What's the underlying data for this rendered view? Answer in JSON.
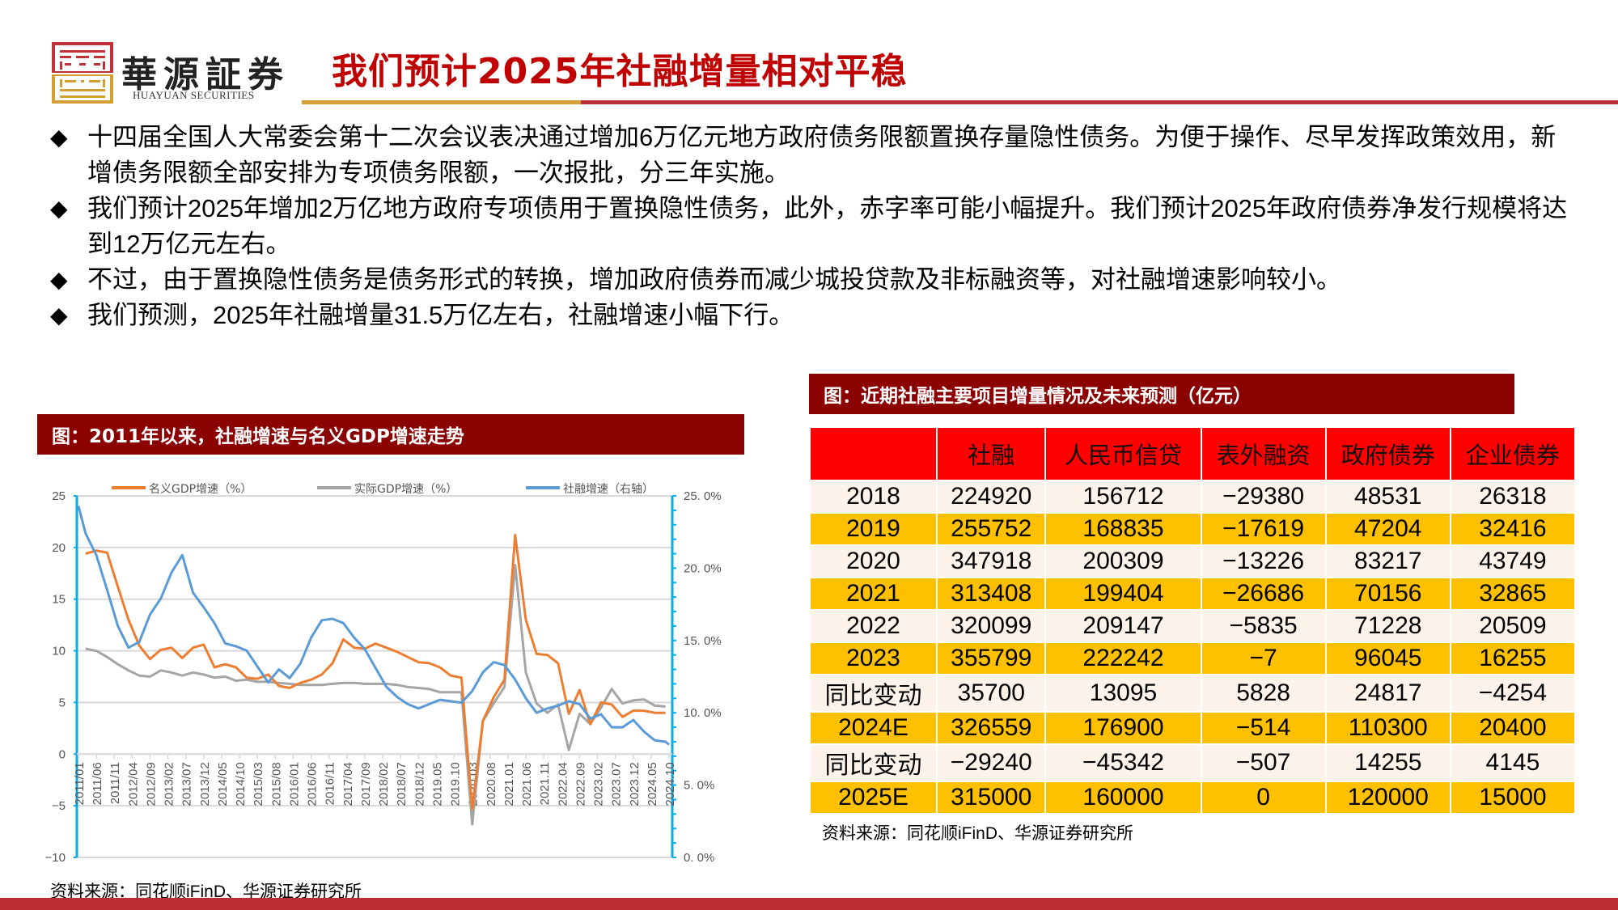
{
  "header": {
    "brand_cn": "華源証券",
    "brand_en": "HUAYUAN SECURITIES",
    "title": "我们预计2025年社融增量相对平稳",
    "colors": {
      "title": "#c00000",
      "rule_gold": "#d39e33",
      "rule_red": "#bb2d35",
      "logo_red": "#c0323a",
      "logo_gold": "#d39e33"
    }
  },
  "bullets": [
    "十四届全国人大常委会第十二次会议表决通过增加6万亿元地方政府债务限额置换存量隐性债务。为便于操作、尽早发挥政策效用，新增债务限额全部安排为专项债务限额，一次报批，分三年实施。",
    "我们预计2025年增加2万亿地方政府专项债用于置换隐性债务，此外，赤字率可能小幅提升。我们预计2025年政府债券净发行规模将达到12万亿元左右。",
    "不过，由于置换隐性债务是债务形式的转换，增加政府债券而减少城投贷款及非标融资等，对社融增速影响较小。",
    "我们预测，2025年社融增量31.5万亿左右，社融增速小幅下行。"
  ],
  "bullet_icon": "diamond-icon",
  "left_panel": {
    "title": "图：2011年以来，社融增速与名义GDP增速走势",
    "source": "资料来源：同花顺iFinD、华源证券研究所"
  },
  "right_panel": {
    "title": "图：近期社融主要项目增量情况及未来预测（亿元）",
    "source": "资料来源：同花顺iFinD、华源证券研究所",
    "table": {
      "columns": [
        "",
        "社融",
        "人民币信贷",
        "表外融资",
        "政府债券",
        "企业债券"
      ],
      "rows": [
        {
          "label": "2018",
          "values": [
            "224920",
            "156712",
            "-29380",
            "48531",
            "26318"
          ],
          "style": "light"
        },
        {
          "label": "2019",
          "values": [
            "255752",
            "168835",
            "-17619",
            "47204",
            "32416"
          ],
          "style": "gold"
        },
        {
          "label": "2020",
          "values": [
            "347918",
            "200309",
            "-13226",
            "83217",
            "43749"
          ],
          "style": "light"
        },
        {
          "label": "2021",
          "values": [
            "313408",
            "199404",
            "-26686",
            "70156",
            "32865"
          ],
          "style": "gold"
        },
        {
          "label": "2022",
          "values": [
            "320099",
            "209147",
            "-5835",
            "71228",
            "20509"
          ],
          "style": "light"
        },
        {
          "label": "2023",
          "values": [
            "355799",
            "222242",
            "-7",
            "96045",
            "16255"
          ],
          "style": "gold"
        },
        {
          "label": "同比变动",
          "values": [
            "35700",
            "13095",
            "5828",
            "24817",
            "-4254"
          ],
          "style": "light"
        },
        {
          "label": "2024E",
          "values": [
            "326559",
            "176900",
            "-514",
            "110300",
            "20400"
          ],
          "style": "gold"
        },
        {
          "label": "同比变动",
          "values": [
            "-29240",
            "-45342",
            "-507",
            "14255",
            "4145"
          ],
          "style": "light"
        },
        {
          "label": "2025E",
          "values": [
            "315000",
            "160000",
            "0",
            "120000",
            "15000"
          ],
          "style": "gold"
        }
      ],
      "colors": {
        "header_bg": "#ff0000",
        "light_row": "#fdf3ea",
        "gold_row": "#ffc000"
      }
    }
  },
  "chart_data": {
    "type": "line",
    "title": "图：2011年以来，社融增速与名义GDP增速走势",
    "xlabel": "",
    "ylabel": "",
    "ylim": [
      -10,
      25
    ],
    "y2lim": [
      0,
      25
    ],
    "yticks": [
      "25",
      "20",
      "15",
      "10",
      "5",
      "0",
      "-5",
      "-10"
    ],
    "y2ticks": [
      "25.0%",
      "20.0%",
      "15.0%",
      "10.0%",
      "5.0%",
      "0.0%"
    ],
    "xticks": [
      "2011/01",
      "2011/06",
      "2011/11",
      "2012/04",
      "2012/09",
      "2013/02",
      "2013/07",
      "2013/12",
      "2014/05",
      "2014/10",
      "2015/03",
      "2015/08",
      "2016/01",
      "2016/06",
      "2016/11",
      "2017/04",
      "2017/09",
      "2018/02",
      "2018/07",
      "2018/12",
      "2019.05",
      "2019.10",
      "2020.03",
      "2020.08",
      "2021.01",
      "2021.06",
      "2021.11",
      "2022.04",
      "2022.09",
      "2023.02",
      "2023.07",
      "2023.12",
      "2024.05",
      "2024.10"
    ],
    "grid": true,
    "legend_position": "top",
    "series": [
      {
        "name": "名义GDP增速（%）",
        "axis": "left",
        "color": "#ed7d31",
        "x": [
          "2011/03",
          "2011/06",
          "2011/09",
          "2011/12",
          "2012/03",
          "2012/06",
          "2012/09",
          "2012/12",
          "2013/03",
          "2013/06",
          "2013/09",
          "2013/12",
          "2014/03",
          "2014/06",
          "2014/09",
          "2014/12",
          "2015/03",
          "2015/06",
          "2015/09",
          "2015/12",
          "2016/03",
          "2016/06",
          "2016/09",
          "2016/12",
          "2017/03",
          "2017/06",
          "2017/09",
          "2017/12",
          "2018/03",
          "2018/06",
          "2018/09",
          "2018/12",
          "2019/03",
          "2019/06",
          "2019/09",
          "2019/12",
          "2020/03",
          "2020/06",
          "2020/09",
          "2020/12",
          "2021/03",
          "2021/06",
          "2021/09",
          "2021/12",
          "2022/03",
          "2022/06",
          "2022/09",
          "2022/12",
          "2023/03",
          "2023/06",
          "2023/09",
          "2023/12",
          "2024/03",
          "2024/06",
          "2024/09"
        ],
        "values": [
          19.4,
          19.7,
          19.5,
          16.2,
          13.0,
          10.5,
          9.2,
          10.1,
          10.3,
          9.3,
          10.3,
          10.6,
          8.4,
          8.7,
          8.4,
          7.4,
          7.3,
          7.7,
          6.6,
          6.4,
          6.9,
          7.2,
          7.7,
          8.8,
          11.1,
          10.3,
          10.2,
          10.7,
          10.3,
          9.9,
          9.4,
          8.9,
          8.8,
          8.4,
          7.6,
          7.4,
          -5.3,
          3.2,
          5.5,
          7.2,
          21.2,
          13.0,
          9.7,
          9.6,
          8.8,
          3.9,
          6.2,
          2.9,
          5.0,
          4.8,
          3.6,
          4.2,
          4.2,
          4.0,
          4.0
        ]
      },
      {
        "name": "实际GDP增速（%）",
        "axis": "left",
        "color": "#a5a5a5",
        "x": [
          "2011/03",
          "2011/06",
          "2011/09",
          "2011/12",
          "2012/03",
          "2012/06",
          "2012/09",
          "2012/12",
          "2013/03",
          "2013/06",
          "2013/09",
          "2013/12",
          "2014/03",
          "2014/06",
          "2014/09",
          "2014/12",
          "2015/03",
          "2015/06",
          "2015/09",
          "2015/12",
          "2016/03",
          "2016/06",
          "2016/09",
          "2016/12",
          "2017/03",
          "2017/06",
          "2017/09",
          "2017/12",
          "2018/03",
          "2018/06",
          "2018/09",
          "2018/12",
          "2019/03",
          "2019/06",
          "2019/09",
          "2019/12",
          "2020/03",
          "2020/06",
          "2020/09",
          "2020/12",
          "2021/03",
          "2021/06",
          "2021/09",
          "2021/12",
          "2022/03",
          "2022/06",
          "2022/09",
          "2022/12",
          "2023/03",
          "2023/06",
          "2023/09",
          "2023/12",
          "2024/03",
          "2024/06",
          "2024/09"
        ],
        "values": [
          10.2,
          10.0,
          9.4,
          8.7,
          8.1,
          7.6,
          7.5,
          8.1,
          7.9,
          7.6,
          7.9,
          7.7,
          7.4,
          7.5,
          7.1,
          7.2,
          7.0,
          7.0,
          6.9,
          6.8,
          6.7,
          6.7,
          6.7,
          6.8,
          6.9,
          6.9,
          6.8,
          6.8,
          6.8,
          6.7,
          6.5,
          6.4,
          6.3,
          6.0,
          6.0,
          6.0,
          -6.8,
          3.2,
          4.9,
          6.5,
          18.3,
          7.9,
          4.9,
          4.0,
          4.8,
          0.4,
          3.9,
          2.9,
          4.5,
          6.3,
          4.9,
          5.2,
          5.3,
          4.7,
          4.6
        ]
      },
      {
        "name": "社融增速（右轴）",
        "axis": "right",
        "color": "#5b9bd5",
        "x": [
          "2011/01",
          "2011/03",
          "2011/06",
          "2011/09",
          "2011/12",
          "2012/03",
          "2012/06",
          "2012/09",
          "2012/12",
          "2013/03",
          "2013/06",
          "2013/09",
          "2013/12",
          "2014/03",
          "2014/06",
          "2014/09",
          "2014/12",
          "2015/03",
          "2015/06",
          "2015/09",
          "2015/12",
          "2016/03",
          "2016/06",
          "2016/09",
          "2016/12",
          "2017/03",
          "2017/06",
          "2017/09",
          "2017/12",
          "2018/03",
          "2018/06",
          "2018/09",
          "2018/12",
          "2019/03",
          "2019/06",
          "2019/09",
          "2019/12",
          "2020/03",
          "2020/06",
          "2020/09",
          "2020/12",
          "2021/03",
          "2021/06",
          "2021/09",
          "2021/12",
          "2022/03",
          "2022/06",
          "2022/09",
          "2022/12",
          "2023/03",
          "2023/06",
          "2023/09",
          "2023/12",
          "2024/03",
          "2024/06",
          "2024/09",
          "2024/10"
        ],
        "values": [
          24.3,
          22.4,
          20.9,
          18.5,
          16.0,
          14.5,
          14.9,
          16.8,
          17.9,
          19.7,
          20.9,
          18.3,
          17.3,
          16.2,
          14.8,
          14.6,
          14.3,
          13.2,
          12.1,
          13.0,
          12.4,
          13.4,
          15.2,
          16.4,
          16.5,
          16.2,
          15.2,
          14.4,
          13.1,
          11.8,
          11.1,
          10.6,
          10.3,
          10.6,
          10.9,
          10.8,
          10.7,
          11.5,
          12.8,
          13.5,
          13.3,
          12.3,
          11.0,
          10.0,
          10.3,
          10.5,
          10.8,
          10.6,
          9.6,
          9.9,
          9.0,
          9.0,
          9.5,
          8.7,
          8.1,
          8.0,
          7.8
        ]
      }
    ]
  }
}
